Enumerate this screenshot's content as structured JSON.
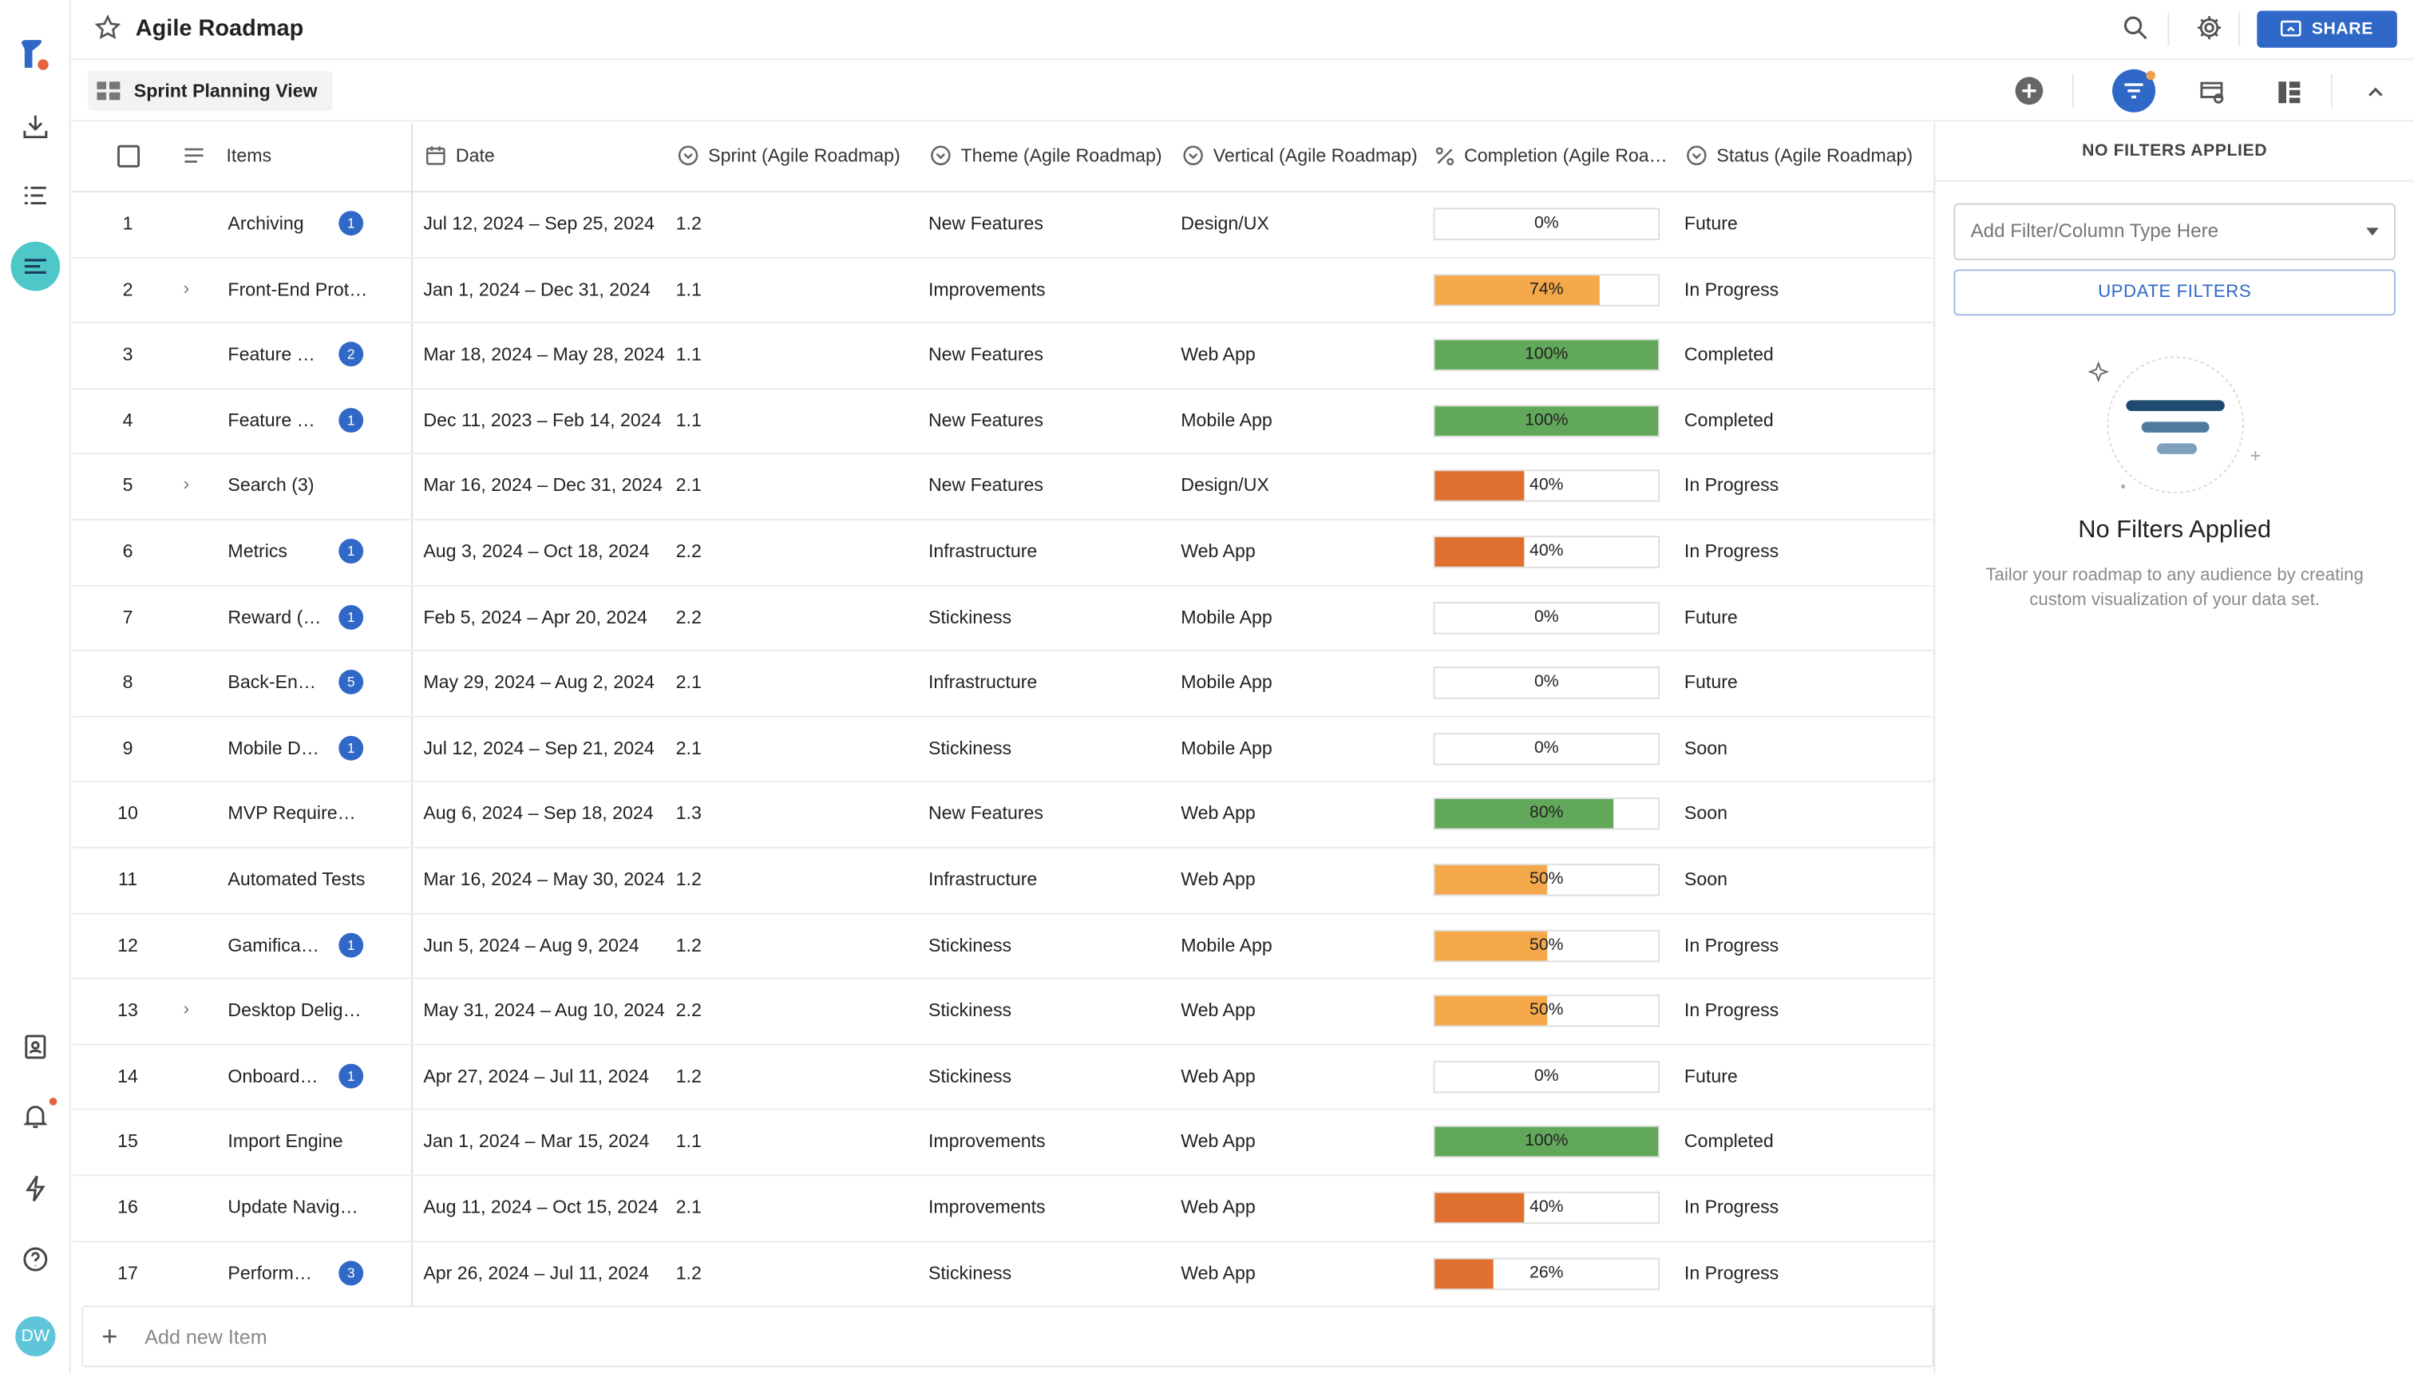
{
  "app": {
    "title": "Agile Roadmap",
    "share_label": "SHARE",
    "avatar_initials": "DW"
  },
  "toolbar": {
    "view_name": "Sprint Planning View"
  },
  "columns": {
    "items": "Items",
    "date": "Date",
    "sprint": "Sprint (Agile Roadmap)",
    "theme": "Theme (Agile Roadmap)",
    "vertical": "Vertical (Agile Roadmap)",
    "completion": "Completion (Agile Roa…",
    "status": "Status (Agile Roadmap)"
  },
  "rows": [
    {
      "n": "1",
      "name": "Archiving",
      "expand": false,
      "badge": "1",
      "date": "Jul 12, 2024 – Sep 25, 2024",
      "sprint": "1.2",
      "theme": "New Features",
      "vertical": "Design/UX",
      "completion": 0,
      "pct": "0%",
      "status": "Future"
    },
    {
      "n": "2",
      "name": "Front-End Prot…",
      "expand": true,
      "badge": "",
      "date": "Jan 1, 2024 – Dec 31, 2024",
      "sprint": "1.1",
      "theme": "Improvements",
      "vertical": "",
      "completion": 74,
      "pct": "74%",
      "status": "In Progress"
    },
    {
      "n": "3",
      "name": "Feature …",
      "expand": false,
      "badge": "2",
      "date": "Mar 18, 2024 – May 28, 2024",
      "sprint": "1.1",
      "theme": "New Features",
      "vertical": "Web App",
      "completion": 100,
      "pct": "100%",
      "status": "Completed"
    },
    {
      "n": "4",
      "name": "Feature …",
      "expand": false,
      "badge": "1",
      "date": "Dec 11, 2023 – Feb 14, 2024",
      "sprint": "1.1",
      "theme": "New Features",
      "vertical": "Mobile App",
      "completion": 100,
      "pct": "100%",
      "status": "Completed"
    },
    {
      "n": "5",
      "name": "Search (3)",
      "expand": true,
      "badge": "",
      "date": "Mar 16, 2024 – Dec 31, 2024",
      "sprint": "2.1",
      "theme": "New Features",
      "vertical": "Design/UX",
      "completion": 40,
      "pct": "40%",
      "status": "In Progress"
    },
    {
      "n": "6",
      "name": "Metrics",
      "expand": false,
      "badge": "1",
      "date": "Aug 3, 2024 – Oct 18, 2024",
      "sprint": "2.2",
      "theme": "Infrastructure",
      "vertical": "Web App",
      "completion": 40,
      "pct": "40%",
      "status": "In Progress"
    },
    {
      "n": "7",
      "name": "Reward (…",
      "expand": false,
      "badge": "1",
      "date": "Feb 5, 2024 – Apr 20, 2024",
      "sprint": "2.2",
      "theme": "Stickiness",
      "vertical": "Mobile App",
      "completion": 0,
      "pct": "0%",
      "status": "Future"
    },
    {
      "n": "8",
      "name": "Back-En…",
      "expand": false,
      "badge": "5",
      "date": "May 29, 2024 – Aug 2, 2024",
      "sprint": "2.1",
      "theme": "Infrastructure",
      "vertical": "Mobile App",
      "completion": 0,
      "pct": "0%",
      "status": "Future"
    },
    {
      "n": "9",
      "name": "Mobile D…",
      "expand": false,
      "badge": "1",
      "date": "Jul 12, 2024 – Sep 21, 2024",
      "sprint": "2.1",
      "theme": "Stickiness",
      "vertical": "Mobile App",
      "completion": 0,
      "pct": "0%",
      "status": "Soon"
    },
    {
      "n": "10",
      "name": "MVP Require…",
      "expand": false,
      "badge": "",
      "date": "Aug 6, 2024 – Sep 18, 2024",
      "sprint": "1.3",
      "theme": "New Features",
      "vertical": "Web App",
      "completion": 80,
      "pct": "80%",
      "status": "Soon"
    },
    {
      "n": "11",
      "name": "Automated Tests",
      "expand": false,
      "badge": "",
      "date": "Mar 16, 2024 – May 30, 2024",
      "sprint": "1.2",
      "theme": "Infrastructure",
      "vertical": "Web App",
      "completion": 50,
      "pct": "50%",
      "status": "Soon"
    },
    {
      "n": "12",
      "name": "Gamifica…",
      "expand": false,
      "badge": "1",
      "date": "Jun 5, 2024 – Aug 9, 2024",
      "sprint": "1.2",
      "theme": "Stickiness",
      "vertical": "Mobile App",
      "completion": 50,
      "pct": "50%",
      "status": "In Progress"
    },
    {
      "n": "13",
      "name": "Desktop Delig…",
      "expand": true,
      "badge": "",
      "date": "May 31, 2024 – Aug 10, 2024",
      "sprint": "2.2",
      "theme": "Stickiness",
      "vertical": "Web App",
      "completion": 50,
      "pct": "50%",
      "status": "In Progress"
    },
    {
      "n": "14",
      "name": "Onboard…",
      "expand": false,
      "badge": "1",
      "date": "Apr 27, 2024 – Jul 11, 2024",
      "sprint": "1.2",
      "theme": "Stickiness",
      "vertical": "Web App",
      "completion": 0,
      "pct": "0%",
      "status": "Future"
    },
    {
      "n": "15",
      "name": "Import Engine",
      "expand": false,
      "badge": "",
      "date": "Jan 1, 2024 – Mar 15, 2024",
      "sprint": "1.1",
      "theme": "Improvements",
      "vertical": "Web App",
      "completion": 100,
      "pct": "100%",
      "status": "Completed"
    },
    {
      "n": "16",
      "name": "Update Navig…",
      "expand": false,
      "badge": "",
      "date": "Aug 11, 2024 – Oct 15, 2024",
      "sprint": "2.1",
      "theme": "Improvements",
      "vertical": "Web App",
      "completion": 40,
      "pct": "40%",
      "status": "In Progress"
    },
    {
      "n": "17",
      "name": "Perform…",
      "expand": false,
      "badge": "3",
      "date": "Apr 26, 2024 – Jul 11, 2024",
      "sprint": "1.2",
      "theme": "Stickiness",
      "vertical": "Web App",
      "completion": 26,
      "pct": "26%",
      "status": "In Progress"
    }
  ],
  "add_item_label": "Add new Item",
  "filters": {
    "header": "NO FILTERS APPLIED",
    "select_placeholder": "Add Filter/Column Type Here",
    "update_label": "UPDATE FILTERS",
    "empty_title": "No Filters Applied",
    "empty_text": "Tailor your roadmap to any audience by creating custom visualization of your data set."
  },
  "colors": {
    "accent": "#2f68c6",
    "teal": "#4ec7c9",
    "green": "#62a85a",
    "amber": "#f4a84a",
    "orange": "#e07030"
  }
}
